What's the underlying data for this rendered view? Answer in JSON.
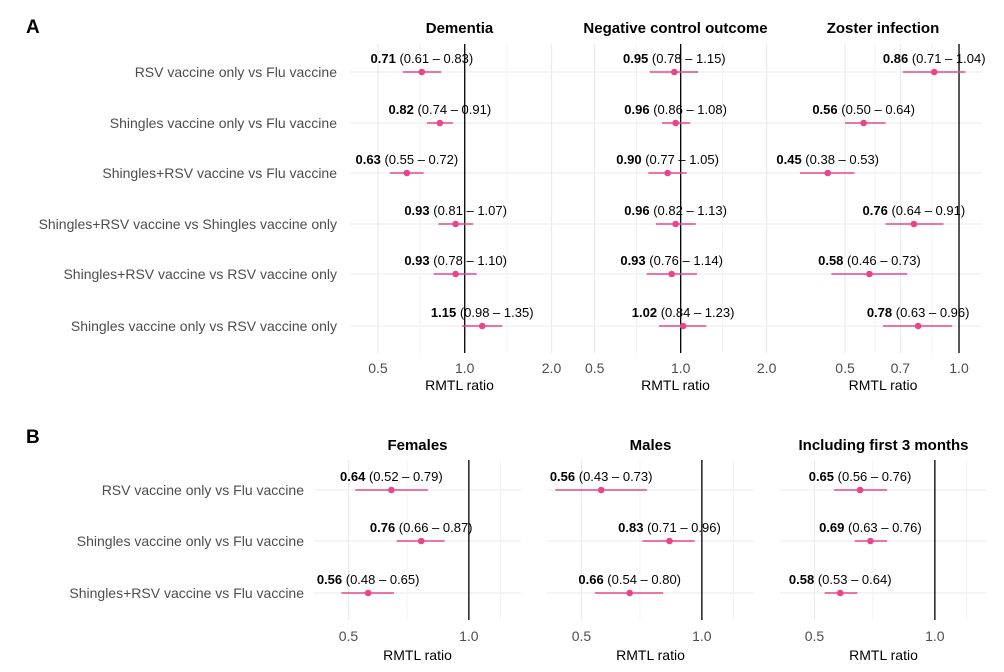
{
  "chart_data": [
    {
      "type": "forest",
      "panel": "A",
      "row_labels": [
        "RSV vaccine only vs Flu vaccine",
        "Shingles vaccine only vs Flu vaccine",
        "Shingles+RSV vaccine vs Flu vaccine",
        "Shingles+RSV vaccine vs Shingles vaccine only",
        "Shingles+RSV vaccine vs RSV vaccine only",
        "Shingles vaccine only vs RSV vaccine only"
      ],
      "facets": [
        {
          "title": "Dementia",
          "xlabel": "RMTL ratio",
          "scale": "log",
          "xlim": [
            0.4,
            2.3
          ],
          "ticks": [
            {
              "v": 0.5,
              "label": "0.5"
            },
            {
              "v": 1.0,
              "label": "1.0"
            },
            {
              "v": 2.0,
              "label": "2.0"
            }
          ],
          "minor_ticks": [
            0.7,
            1.4
          ],
          "estimates": [
            {
              "est": 0.71,
              "lo": 0.61,
              "hi": 0.83,
              "est_text": "0.71",
              "ci_text": "(0.61 – 0.83)"
            },
            {
              "est": 0.82,
              "lo": 0.74,
              "hi": 0.91,
              "est_text": "0.82",
              "ci_text": "(0.74 – 0.91)"
            },
            {
              "est": 0.63,
              "lo": 0.55,
              "hi": 0.72,
              "est_text": "0.63",
              "ci_text": "(0.55 – 0.72)"
            },
            {
              "est": 0.93,
              "lo": 0.81,
              "hi": 1.07,
              "est_text": "0.93",
              "ci_text": "(0.81 – 1.07)"
            },
            {
              "est": 0.93,
              "lo": 0.78,
              "hi": 1.1,
              "est_text": "0.93",
              "ci_text": "(0.78 – 1.10)"
            },
            {
              "est": 1.15,
              "lo": 0.98,
              "hi": 1.35,
              "est_text": "1.15",
              "ci_text": "(0.98 – 1.35)"
            }
          ]
        },
        {
          "title": "Negative control outcome",
          "xlabel": "RMTL ratio",
          "scale": "log",
          "xlim": [
            0.4,
            2.3
          ],
          "ticks": [
            {
              "v": 0.5,
              "label": "0.5"
            },
            {
              "v": 1.0,
              "label": "1.0"
            },
            {
              "v": 2.0,
              "label": "2.0"
            }
          ],
          "minor_ticks": [
            0.7,
            1.4
          ],
          "estimates": [
            {
              "est": 0.95,
              "lo": 0.78,
              "hi": 1.15,
              "est_text": "0.95",
              "ci_text": "(0.78 – 1.15)"
            },
            {
              "est": 0.96,
              "lo": 0.86,
              "hi": 1.08,
              "est_text": "0.96",
              "ci_text": "(0.86 – 1.08)"
            },
            {
              "est": 0.9,
              "lo": 0.77,
              "hi": 1.05,
              "est_text": "0.90",
              "ci_text": "(0.77 – 1.05)"
            },
            {
              "est": 0.96,
              "lo": 0.82,
              "hi": 1.13,
              "est_text": "0.96",
              "ci_text": "(0.82 – 1.13)"
            },
            {
              "est": 0.93,
              "lo": 0.76,
              "hi": 1.14,
              "est_text": "0.93",
              "ci_text": "(0.76 – 1.14)"
            },
            {
              "est": 1.02,
              "lo": 0.84,
              "hi": 1.23,
              "est_text": "1.02",
              "ci_text": "(0.84 – 1.23)"
            }
          ]
        },
        {
          "title": "Zoster infection",
          "xlabel": "RMTL ratio",
          "scale": "log",
          "xlim": [
            0.345,
            1.15
          ],
          "ticks": [
            {
              "v": 0.5,
              "label": "0.5"
            },
            {
              "v": 0.7,
              "label": "0.7"
            },
            {
              "v": 1.0,
              "label": "1.0"
            }
          ],
          "minor_ticks": [
            0.6,
            0.85
          ],
          "estimates": [
            {
              "est": 0.86,
              "lo": 0.71,
              "hi": 1.04,
              "est_text": "0.86",
              "ci_text": "(0.71 – 1.04)"
            },
            {
              "est": 0.56,
              "lo": 0.5,
              "hi": 0.64,
              "est_text": "0.56",
              "ci_text": "(0.50 – 0.64)"
            },
            {
              "est": 0.45,
              "lo": 0.38,
              "hi": 0.53,
              "est_text": "0.45",
              "ci_text": "(0.38 – 0.53)"
            },
            {
              "est": 0.76,
              "lo": 0.64,
              "hi": 0.91,
              "est_text": "0.76",
              "ci_text": "(0.64 – 0.91)"
            },
            {
              "est": 0.58,
              "lo": 0.46,
              "hi": 0.73,
              "est_text": "0.58",
              "ci_text": "(0.46 – 0.73)"
            },
            {
              "est": 0.78,
              "lo": 0.63,
              "hi": 0.96,
              "est_text": "0.78",
              "ci_text": "(0.63 – 0.96)"
            }
          ]
        }
      ]
    },
    {
      "type": "forest",
      "panel": "B",
      "row_labels": [
        "RSV vaccine only vs Flu vaccine",
        "Shingles vaccine only vs Flu vaccine",
        "Shingles+RSV vaccine vs Flu vaccine"
      ],
      "facets": [
        {
          "title": "Females",
          "xlabel": "RMTL ratio",
          "scale": "log",
          "xlim": [
            0.41,
            1.35
          ],
          "ticks": [
            {
              "v": 0.5,
              "label": "0.5"
            },
            {
              "v": 1.0,
              "label": "1.0"
            }
          ],
          "minor_ticks": [
            0.7,
            1.2
          ],
          "estimates": [
            {
              "est": 0.64,
              "lo": 0.52,
              "hi": 0.79,
              "est_text": "0.64",
              "ci_text": "(0.52 – 0.79)"
            },
            {
              "est": 0.76,
              "lo": 0.66,
              "hi": 0.87,
              "est_text": "0.76",
              "ci_text": "(0.66 – 0.87)"
            },
            {
              "est": 0.56,
              "lo": 0.48,
              "hi": 0.65,
              "est_text": "0.56",
              "ci_text": "(0.48 – 0.65)"
            }
          ]
        },
        {
          "title": "Males",
          "xlabel": "RMTL ratio",
          "scale": "log",
          "xlim": [
            0.41,
            1.35
          ],
          "ticks": [
            {
              "v": 0.5,
              "label": "0.5"
            },
            {
              "v": 1.0,
              "label": "1.0"
            }
          ],
          "minor_ticks": [
            0.7,
            1.2
          ],
          "estimates": [
            {
              "est": 0.56,
              "lo": 0.43,
              "hi": 0.73,
              "est_text": "0.56",
              "ci_text": "(0.43 – 0.73)"
            },
            {
              "est": 0.83,
              "lo": 0.71,
              "hi": 0.96,
              "est_text": "0.83",
              "ci_text": "(0.71 – 0.96)"
            },
            {
              "est": 0.66,
              "lo": 0.54,
              "hi": 0.8,
              "est_text": "0.66",
              "ci_text": "(0.54 – 0.80)"
            }
          ]
        },
        {
          "title": "Including first 3 months",
          "xlabel": "RMTL ratio",
          "scale": "log",
          "xlim": [
            0.41,
            1.35
          ],
          "ticks": [
            {
              "v": 0.5,
              "label": "0.5"
            },
            {
              "v": 1.0,
              "label": "1.0"
            }
          ],
          "minor_ticks": [
            0.7,
            1.2
          ],
          "estimates": [
            {
              "est": 0.65,
              "lo": 0.56,
              "hi": 0.76,
              "est_text": "0.65",
              "ci_text": "(0.56 – 0.76)"
            },
            {
              "est": 0.69,
              "lo": 0.63,
              "hi": 0.76,
              "est_text": "0.69",
              "ci_text": "(0.63 – 0.76)"
            },
            {
              "est": 0.58,
              "lo": 0.53,
              "hi": 0.64,
              "est_text": "0.58",
              "ci_text": "(0.53 – 0.64)"
            }
          ]
        }
      ]
    }
  ],
  "colors": {
    "point": "#e8468a",
    "ci": "#e8468a",
    "reference_line": "#000000",
    "grid": "#ebebeb"
  }
}
